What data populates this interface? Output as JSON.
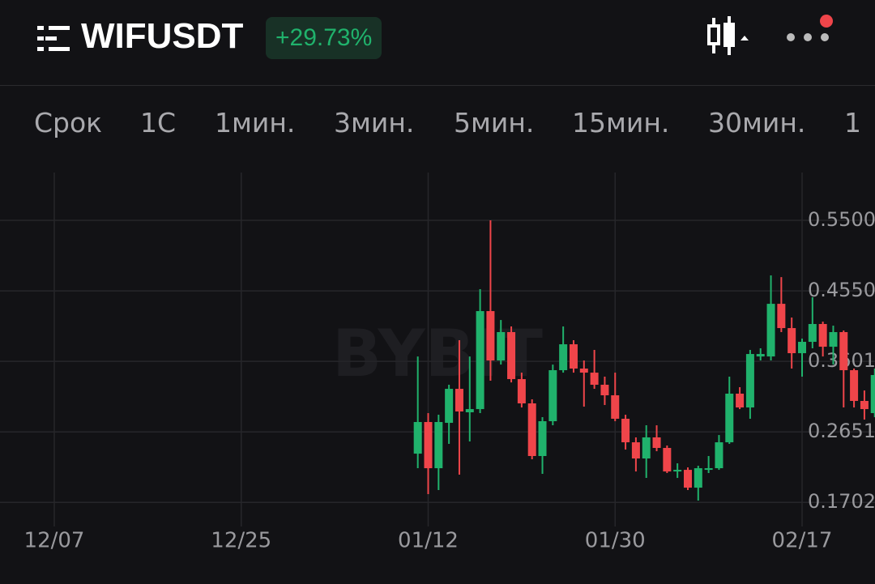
{
  "header": {
    "title": "WIFUSDT",
    "change": "+29.73%"
  },
  "tabs": [
    "Срок",
    "1С",
    "1мин.",
    "3мин.",
    "5мин.",
    "15мин.",
    "30мин.",
    "1"
  ],
  "chart_data": {
    "type": "candlestick",
    "watermark": "BYBIT",
    "categories": [
      "12/07",
      null,
      null,
      null,
      null,
      null,
      null,
      null,
      null,
      null,
      null,
      null,
      null,
      null,
      null,
      null,
      null,
      null,
      "12/25",
      null,
      null,
      null,
      null,
      null,
      null,
      null,
      null,
      null,
      null,
      null,
      null,
      null,
      null,
      null,
      null,
      null,
      "01/12",
      null,
      null,
      null,
      null,
      null,
      null,
      null,
      null,
      null,
      null,
      null,
      null,
      null,
      null,
      null,
      null,
      null,
      "01/30",
      null,
      null,
      null,
      null,
      null,
      null,
      null,
      null,
      null,
      null,
      null,
      null,
      null,
      null,
      null,
      null,
      null,
      "02/17",
      null,
      null,
      null,
      null,
      null,
      null,
      null
    ],
    "open": [
      null,
      null,
      null,
      null,
      null,
      null,
      null,
      null,
      null,
      null,
      null,
      null,
      null,
      null,
      null,
      null,
      null,
      null,
      null,
      null,
      null,
      null,
      null,
      null,
      null,
      null,
      null,
      null,
      null,
      null,
      null,
      null,
      null,
      null,
      null,
      0.2358,
      0.2784,
      0.2162,
      0.2773,
      0.3231,
      0.2915,
      0.2958,
      0.4278,
      0.3613,
      0.3995,
      0.3362,
      0.3035,
      0.2326,
      0.2795,
      0.3482,
      0.3831,
      0.3504,
      0.3449,
      0.3286,
      0.3144,
      0.2828,
      0.2511,
      0.2293,
      0.2577,
      0.2435,
      0.2118,
      0.214,
      0.19,
      0.214,
      0.2162,
      0.2511,
      0.3166,
      0.298,
      0.3667,
      0.3667,
      0.4376,
      0.4049,
      0.3711,
      0.3864,
      0.4104,
      0.3798,
      0.3995,
      0.3482,
      0.3068,
      0.2904
    ],
    "high": [
      null,
      null,
      null,
      null,
      null,
      null,
      null,
      null,
      null,
      null,
      null,
      null,
      null,
      null,
      null,
      null,
      null,
      null,
      null,
      null,
      null,
      null,
      null,
      null,
      null,
      null,
      null,
      null,
      null,
      null,
      null,
      null,
      null,
      null,
      null,
      0.3667,
      0.2904,
      0.2882,
      0.3286,
      0.3886,
      0.3667,
      0.4573,
      0.55,
      0.4158,
      0.4071,
      0.3449,
      0.3089,
      0.2849,
      0.3558,
      0.4071,
      0.3886,
      0.3613,
      0.3755,
      0.3395,
      0.3449,
      0.2882,
      0.2577,
      0.274,
      0.274,
      0.2468,
      0.2228,
      0.2173,
      0.2195,
      0.2326,
      0.2609,
      0.3395,
      0.3253,
      0.3755,
      0.3777,
      0.4758,
      0.4736,
      0.4191,
      0.3907,
      0.4464,
      0.4136,
      0.4082,
      0.4017,
      0.3504,
      0.3209,
      0.3504
    ],
    "low": [
      null,
      null,
      null,
      null,
      null,
      null,
      null,
      null,
      null,
      null,
      null,
      null,
      null,
      null,
      null,
      null,
      null,
      null,
      null,
      null,
      null,
      null,
      null,
      null,
      null,
      null,
      null,
      null,
      null,
      null,
      null,
      null,
      null,
      null,
      null,
      0.2162,
      0.1813,
      0.1868,
      0.2489,
      0.2075,
      0.2522,
      0.2904,
      0.334,
      0.3558,
      0.3318,
      0.298,
      0.2282,
      0.2086,
      0.274,
      0.3449,
      0.3449,
      0.2991,
      0.3231,
      0.3013,
      0.2795,
      0.2413,
      0.2118,
      0.2031,
      0.2391,
      0.2097,
      0.2031,
      0.1868,
      0.1726,
      0.2097,
      0.214,
      0.2489,
      0.2958,
      0.2828,
      0.3613,
      0.3613,
      0.3995,
      0.3504,
      0.3395,
      0.3777,
      0.3667,
      0.3558,
      0.298,
      0.298,
      0.2817,
      0.2849
    ],
    "close": [
      null,
      null,
      null,
      null,
      null,
      null,
      null,
      null,
      null,
      null,
      null,
      null,
      null,
      null,
      null,
      null,
      null,
      null,
      null,
      null,
      null,
      null,
      null,
      null,
      null,
      null,
      null,
      null,
      null,
      null,
      null,
      null,
      null,
      null,
      null,
      0.2784,
      0.2162,
      0.2784,
      0.3231,
      0.2926,
      0.2958,
      0.4278,
      0.3613,
      0.3995,
      0.3362,
      0.3035,
      0.2326,
      0.2795,
      0.3482,
      0.3831,
      0.3504,
      0.3449,
      0.3286,
      0.3144,
      0.2828,
      0.2511,
      0.2293,
      0.2577,
      0.2435,
      0.2118,
      0.214,
      0.19,
      0.2162,
      0.2162,
      0.2511,
      0.3166,
      0.298,
      0.37,
      0.37,
      0.4376,
      0.4049,
      0.3711,
      0.3864,
      0.4104,
      0.3798,
      0.3995,
      0.3482,
      0.3068,
      0.2958,
      0.3417
    ],
    "up_color": "#20b26c",
    "down_color": "#ef454a",
    "ylim": [
      0.1377,
      0.6144
    ],
    "yticks": [
      {
        "value": 0.55,
        "label": "0.5500"
      },
      {
        "value": 0.455,
        "label": "0.4550"
      },
      0.3601,
      0.2651,
      0.1702
    ],
    "grid": true
  }
}
